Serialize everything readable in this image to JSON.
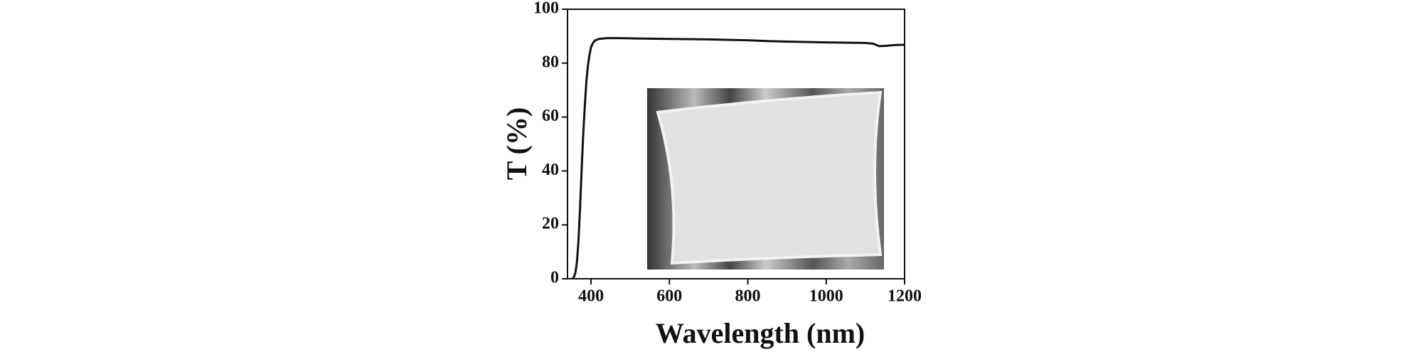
{
  "chart_data": {
    "type": "line",
    "xlabel": "Wavelength (nm)",
    "ylabel": "T (%)",
    "x": [
      352,
      356,
      360,
      364,
      368,
      372,
      376,
      380,
      384,
      388,
      392,
      396,
      400,
      405,
      410,
      420,
      440,
      470,
      500,
      600,
      700,
      800,
      850,
      900,
      1000,
      1050,
      1100,
      1120,
      1135,
      1150,
      1175,
      1200
    ],
    "series": [
      {
        "color": "#111111",
        "values": [
          0,
          0.5,
          2,
          6,
          14,
          26,
          40,
          53,
          64,
          73,
          79,
          83,
          86,
          87.5,
          88.4,
          89,
          89.3,
          89.3,
          89.2,
          89,
          88.8,
          88.5,
          88.2,
          88,
          87.7,
          87.6,
          87.5,
          87.2,
          86.3,
          86.4,
          86.7,
          86.8
        ]
      }
    ],
    "xlim": [
      340,
      1200
    ],
    "xticks": [
      400,
      600,
      800,
      1000,
      1200
    ],
    "ylim": [
      0,
      100
    ],
    "yticks": [
      0,
      20,
      40,
      60,
      80,
      100
    ]
  }
}
